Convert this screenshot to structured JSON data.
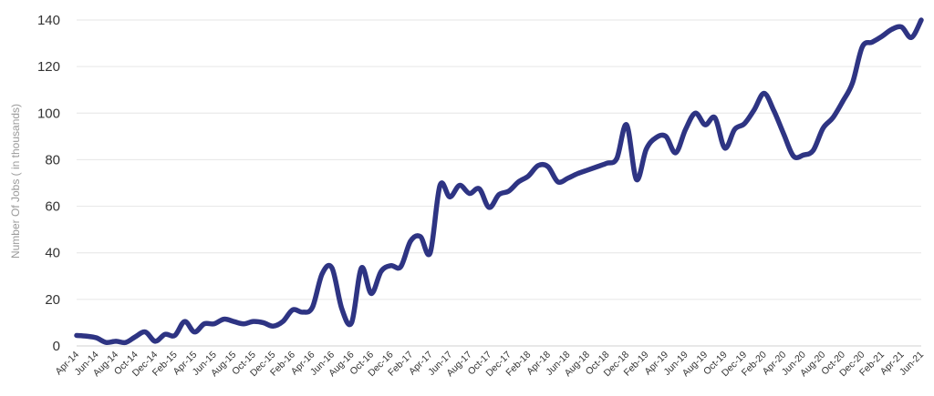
{
  "chart_data": {
    "type": "line",
    "title": "",
    "xlabel": "",
    "ylabel": "Number Of Jobs ( in thousands)",
    "ylim": [
      0,
      140
    ],
    "yticks": [
      0,
      20,
      40,
      60,
      80,
      100,
      120,
      140
    ],
    "grid": true,
    "legend": "none",
    "colors": {
      "line": "#2e3483",
      "grid": "#e6e6e6",
      "text": "#333333",
      "ylabel": "#9a9a9a"
    },
    "x": [
      "Apr-14",
      "May-14",
      "Jun-14",
      "Jul-14",
      "Aug-14",
      "Sep-14",
      "Oct-14",
      "Nov-14",
      "Dec-14",
      "Jan-15",
      "Feb-15",
      "Mar-15",
      "Apr-15",
      "May-15",
      "Jun-15",
      "Jul-15",
      "Aug-15",
      "Sep-15",
      "Oct-15",
      "Nov-15",
      "Dec-15",
      "Jan-16",
      "Feb-16",
      "Mar-16",
      "Apr-16",
      "May-16",
      "Jun-16",
      "Jul-16",
      "Aug-16",
      "Sep-16",
      "Oct-16",
      "Nov-16",
      "Dec-16",
      "Jan-17",
      "Feb-17",
      "Mar-17",
      "Apr-17",
      "May-17",
      "Jun-17",
      "Jul-17",
      "Aug-17",
      "Sep-17",
      "Oct-17",
      "Nov-17",
      "Dec-17",
      "Jan-18",
      "Feb-18",
      "Mar-18",
      "Apr-18",
      "May-18",
      "Jun-18",
      "Jul-18",
      "Aug-18",
      "Sep-18",
      "Oct-18",
      "Nov-18",
      "Dec-18",
      "Jan-19",
      "Feb-19",
      "Mar-19",
      "Apr-19",
      "May-19",
      "Jun-19",
      "Jul-19",
      "Aug-19",
      "Sep-19",
      "Oct-19",
      "Nov-19",
      "Dec-19",
      "Jan-20",
      "Feb-20",
      "Mar-20",
      "Apr-20",
      "May-20",
      "Jun-20",
      "Jul-20",
      "Aug-20",
      "Sep-20",
      "Oct-20",
      "Nov-20",
      "Dec-20",
      "Jan-21",
      "Feb-21",
      "Mar-21",
      "Apr-21",
      "May-21",
      "Jun-21"
    ],
    "xtick_labels": [
      "Apr-14",
      "Jun-14",
      "Aug-14",
      "Oct-14",
      "Dec-14",
      "Feb-15",
      "Apr-15",
      "Jun-15",
      "Aug-15",
      "Oct-15",
      "Dec-15",
      "Feb-16",
      "Apr-16",
      "Jun-16",
      "Aug-16",
      "Oct-16",
      "Dec-16",
      "Feb-17",
      "Apr-17",
      "Jun-17",
      "Aug-17",
      "Oct-17",
      "Dec-17",
      "Feb-18",
      "Apr-18",
      "Jun-18",
      "Aug-18",
      "Oct-18",
      "Dec-18",
      "Feb-19",
      "Apr-19",
      "Jun-19",
      "Aug-19",
      "Oct-19",
      "Dec-19",
      "Feb-20",
      "Apr-20",
      "Jun-20",
      "Aug-20",
      "Oct-20",
      "Dec-20",
      "Feb-21",
      "Apr-21",
      "Jun-21"
    ],
    "series": [
      {
        "values": [
          4.5,
          4.2,
          3.5,
          1.5,
          2,
          1.5,
          4,
          6,
          2,
          5,
          4.5,
          10.5,
          6,
          9.5,
          9.5,
          11.5,
          10.5,
          9.5,
          10.5,
          10,
          8.5,
          10.5,
          15.5,
          14.5,
          16.5,
          31,
          33.5,
          16,
          10,
          33.5,
          22.5,
          32,
          34.5,
          34,
          45,
          47,
          40,
          69,
          64,
          69,
          65.5,
          67.5,
          59.5,
          65,
          66.5,
          70.5,
          73,
          77.5,
          77,
          70.5,
          72,
          74,
          75.5,
          77,
          78.5,
          80.5,
          95,
          71.5,
          84.5,
          89.5,
          90,
          83,
          93,
          100,
          95,
          98,
          85,
          93,
          95.5,
          101.5,
          108.5,
          101,
          91,
          81.5,
          82,
          84,
          93.5,
          98,
          105,
          113,
          128.5,
          130.5,
          133,
          136,
          137,
          132.5,
          140
        ]
      }
    ]
  }
}
